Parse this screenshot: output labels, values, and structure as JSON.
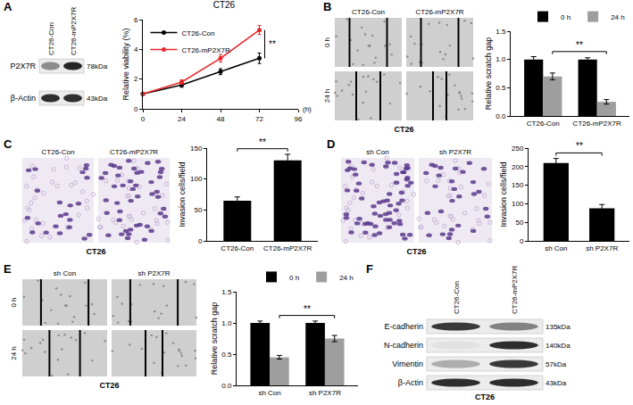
{
  "chart_data": [
    {
      "panel": "A",
      "type": "line",
      "title": "CT26",
      "xlabel": "(h)",
      "ylabel": "Relative viability (%)",
      "x": [
        0,
        24,
        48,
        72
      ],
      "xlim": [
        0,
        96
      ],
      "xticks": [
        0,
        24,
        48,
        72,
        96
      ],
      "ylim": [
        0,
        6
      ],
      "yticks": [
        0,
        2,
        4,
        6
      ],
      "grid": false,
      "legend": "upper left",
      "significance": "**",
      "series": [
        {
          "name": "CT26-Con",
          "color": "#000000",
          "marker": "circle",
          "values": [
            1.0,
            1.6,
            2.5,
            3.4
          ],
          "errors": [
            0.05,
            0.15,
            0.2,
            0.35
          ]
        },
        {
          "name": "CT26-mP2X7R",
          "color": "#e8262b",
          "marker": "circle",
          "values": [
            1.0,
            1.8,
            3.4,
            5.3
          ],
          "errors": [
            0.05,
            0.15,
            0.25,
            0.3
          ]
        }
      ]
    },
    {
      "panel": "B",
      "type": "bar",
      "ylabel": "Relative scratch gap",
      "categories": [
        "CT26-Con",
        "CT26-mP2X7R"
      ],
      "ylim": [
        0,
        1.5
      ],
      "yticks": [
        {
          "value": 0,
          "label": "0.0"
        },
        0.5,
        {
          "value": 1,
          "label": "1.0"
        },
        1.5
      ],
      "grid": false,
      "legend": "top",
      "significance": "**",
      "series": [
        {
          "name": "0 h",
          "color": "#000000",
          "values": [
            1.0,
            1.0
          ],
          "errors": [
            0.05,
            0.03
          ]
        },
        {
          "name": "24 h",
          "color": "#9e9e9e",
          "values": [
            0.7,
            0.25
          ],
          "errors": [
            0.06,
            0.04
          ]
        }
      ]
    },
    {
      "panel": "C",
      "type": "bar",
      "ylabel": "Invasion cells/field",
      "categories": [
        "CT26-Con",
        "CT26-mP2X7R"
      ],
      "values": [
        65,
        130
      ],
      "errors": [
        6,
        10
      ],
      "color": "#000000",
      "ylim": [
        0,
        150
      ],
      "yticks": [
        0,
        50,
        100,
        150
      ],
      "grid": false,
      "significance": "**"
    },
    {
      "panel": "D",
      "type": "bar",
      "ylabel": "Invasion cells/field",
      "categories": [
        "sh Con",
        "sh P2X7R"
      ],
      "values": [
        210,
        88
      ],
      "errors": [
        12,
        10
      ],
      "color": "#000000",
      "ylim": [
        0,
        250
      ],
      "yticks": [
        0,
        50,
        100,
        150,
        200,
        250
      ],
      "grid": false,
      "significance": "**"
    },
    {
      "panel": "E",
      "type": "bar",
      "ylabel": "Relative scratch gap",
      "categories": [
        "sh Con",
        "sh P2X7R"
      ],
      "ylim": [
        0,
        1.5
      ],
      "yticks": [
        {
          "value": 0,
          "label": "0.0"
        },
        0.5,
        {
          "value": 1,
          "label": "1.0"
        },
        1.5
      ],
      "grid": false,
      "legend": "top",
      "significance": "**",
      "series": [
        {
          "name": "0 h",
          "color": "#000000",
          "values": [
            1.0,
            1.0
          ],
          "errors": [
            0.03,
            0.03
          ]
        },
        {
          "name": "24 h",
          "color": "#9e9e9e",
          "values": [
            0.45,
            0.75
          ],
          "errors": [
            0.03,
            0.05
          ]
        }
      ]
    }
  ],
  "blots": [
    {
      "panel": "A",
      "lanes": [
        "CT26-Con",
        "CT26-mP2X7R"
      ],
      "rows": [
        {
          "label": "P2X7R",
          "size": "78kDa",
          "intensities": [
            0.45,
            0.95
          ]
        },
        {
          "label": "β-Actin",
          "size": "43kDa",
          "intensities": [
            0.9,
            0.9
          ]
        }
      ]
    },
    {
      "panel": "F",
      "lanes": [
        "CT26-Con",
        "CT26-mP2X7R"
      ],
      "caption": "CT26",
      "rows": [
        {
          "label": "E-cadherin",
          "size": "135kDa",
          "intensities": [
            0.85,
            0.5
          ]
        },
        {
          "label": "N-cadherin",
          "size": "140kDa",
          "intensities": [
            0.05,
            0.9
          ]
        },
        {
          "label": "Vimentin",
          "size": "57kDa",
          "intensities": [
            0.3,
            0.85
          ]
        },
        {
          "label": "β-Actin",
          "size": "43kDa",
          "intensities": [
            0.9,
            0.9
          ]
        }
      ]
    }
  ],
  "images": [
    {
      "panel": "B",
      "columns": [
        "CT26-Con",
        "CT26-mP2X7R"
      ],
      "rows": [
        "0 h",
        "24 h"
      ],
      "caption": "CT26"
    },
    {
      "panel": "C",
      "columns": [
        "CT26-Con",
        "CT26-mP2X7R"
      ],
      "caption": "CT26"
    },
    {
      "panel": "D",
      "columns": [
        "sh Con",
        "sh P2X7R"
      ],
      "caption": "CT26"
    },
    {
      "panel": "E",
      "columns": [
        "sh Con",
        "sh P2X7R"
      ],
      "rows": [
        "0 h",
        "24 h"
      ],
      "caption": "CT26"
    }
  ]
}
